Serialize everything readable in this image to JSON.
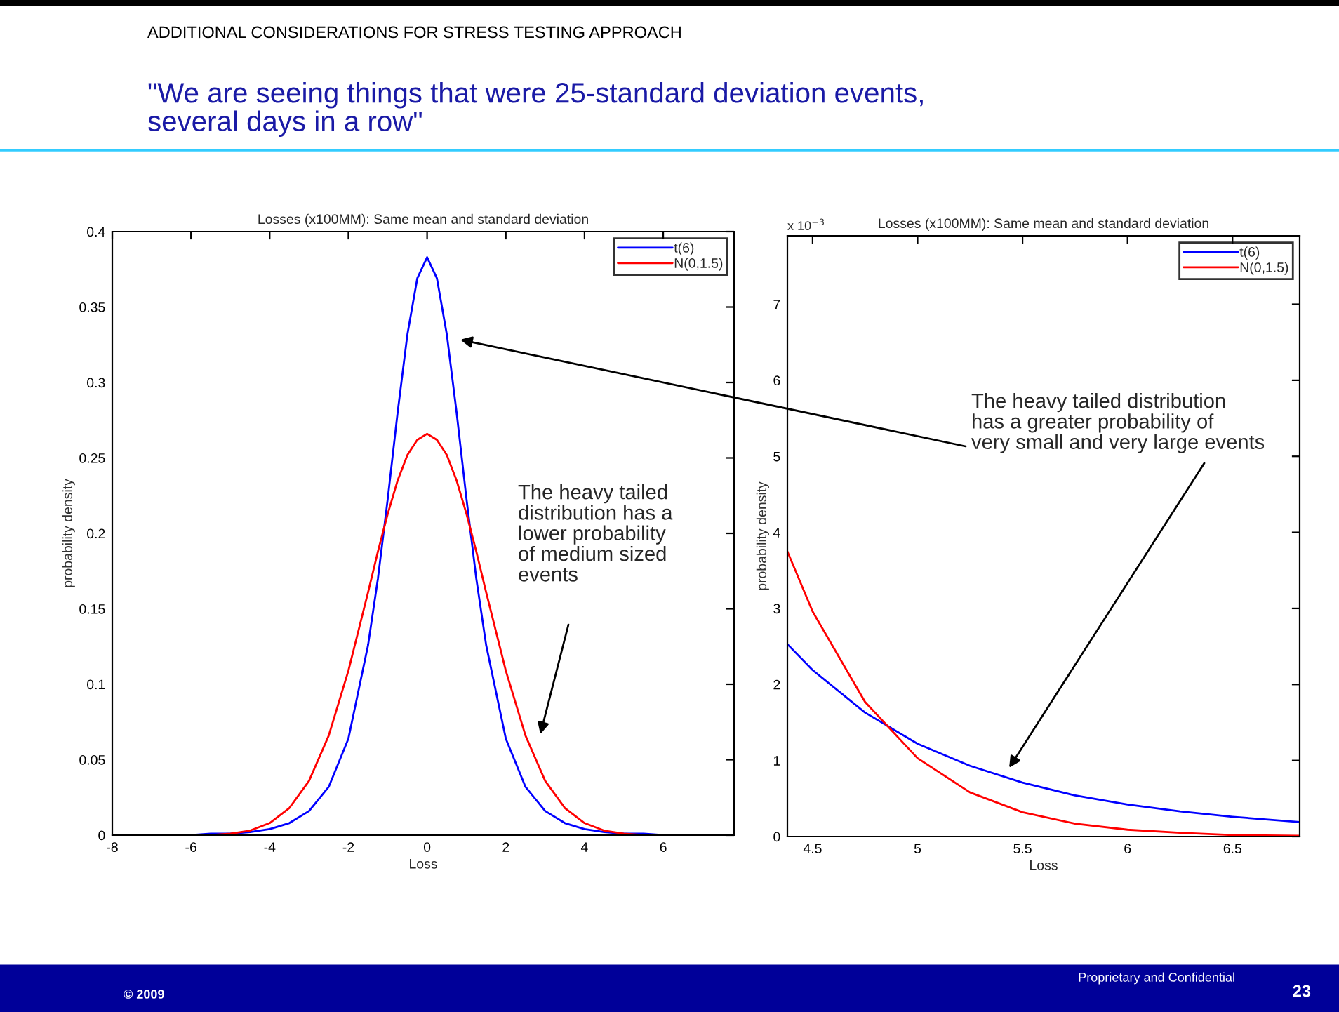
{
  "chart_data": [
    {
      "type": "line",
      "title": "Losses (x100MM): Same mean and standard deviation",
      "xlabel": "Loss",
      "ylabel": "probability density",
      "xlim": [
        -8,
        7.8
      ],
      "xticks": [
        -8,
        -6,
        -4,
        -2,
        0,
        2,
        4,
        6
      ],
      "ylim": [
        0,
        0.4
      ],
      "yticks": [
        0,
        0.05,
        0.1,
        0.15,
        0.2,
        0.25,
        0.3,
        0.35,
        0.4
      ],
      "grid": false,
      "legend": "top right",
      "marker": "none",
      "line_style": "solid",
      "series": [
        {
          "name": "t(6)",
          "color": "#0000ff",
          "x": [
            -6.2,
            -6,
            -5.5,
            -5,
            -4.5,
            -4,
            -3.5,
            -3,
            -2.5,
            -2,
            -1.5,
            -1.25,
            -1,
            -0.75,
            -0.5,
            -0.25,
            0,
            0.25,
            0.5,
            0.75,
            1,
            1.25,
            1.5,
            2,
            2.5,
            3,
            3.5,
            4,
            4.5,
            5,
            5.5,
            6,
            6.2
          ],
          "values": [
            0,
            0,
            0.001,
            0.001,
            0.002,
            0.004,
            0.008,
            0.016,
            0.032,
            0.064,
            0.126,
            0.17,
            0.223,
            0.28,
            0.332,
            0.369,
            0.383,
            0.369,
            0.332,
            0.28,
            0.223,
            0.17,
            0.126,
            0.064,
            0.032,
            0.016,
            0.008,
            0.004,
            0.002,
            0.001,
            0.001,
            0,
            0
          ]
        },
        {
          "name": "N(0,1.5)",
          "color": "#ff0000",
          "x": [
            -7,
            -6,
            -5.5,
            -5,
            -4.5,
            -4,
            -3.5,
            -3,
            -2.5,
            -2,
            -1.5,
            -1.25,
            -1,
            -0.75,
            -0.5,
            -0.25,
            0,
            0.25,
            0.5,
            0.75,
            1,
            1.25,
            1.5,
            2,
            2.5,
            3,
            3.5,
            4,
            4.5,
            5,
            5.5,
            6,
            7
          ],
          "values": [
            0,
            0,
            0,
            0.001,
            0.003,
            0.008,
            0.018,
            0.036,
            0.066,
            0.109,
            0.161,
            0.188,
            0.213,
            0.235,
            0.252,
            0.262,
            0.266,
            0.262,
            0.252,
            0.235,
            0.213,
            0.188,
            0.161,
            0.109,
            0.066,
            0.036,
            0.018,
            0.008,
            0.003,
            0.001,
            0,
            0,
            0
          ]
        }
      ],
      "annotations": [
        "ADDITIONAL CONSIDERATIONS FOR STRESS TESTING APPROACH",
        "\"We are seeing things that were 25-standard deviation events,\nseveral days in a row\"",
        "© 2009",
        "Proprietary and Confidential",
        "23",
        "The heavy tailed\ndistribution has a\nlower probability\nof medium sized\nevents"
      ]
    },
    {
      "type": "line",
      "title": "Losses (x100MM): Same mean and standard deviation",
      "xlabel": "Loss",
      "ylabel": "probability density",
      "xlim": [
        4.38,
        6.82
      ],
      "xticks": [
        4.5,
        5,
        5.5,
        6,
        6.5
      ],
      "ylim": [
        0,
        7.9
      ],
      "yticks": [
        0,
        1,
        2,
        3,
        4,
        5,
        6,
        7
      ],
      "grid": false,
      "legend": "top right",
      "marker": "none",
      "line_style": "solid",
      "series": [
        {
          "name": "t(6)",
          "color": "#0000ff",
          "x": [
            4.38,
            4.5,
            4.75,
            5,
            5.25,
            5.5,
            5.75,
            6,
            6.25,
            6.5,
            6.82
          ],
          "values": [
            2.53,
            2.19,
            1.63,
            1.22,
            0.93,
            0.71,
            0.54,
            0.42,
            0.33,
            0.26,
            0.19
          ]
        },
        {
          "name": "N(0,1.5)",
          "color": "#ff0000",
          "x": [
            4.38,
            4.5,
            4.75,
            5,
            5.25,
            5.5,
            5.75,
            6,
            6.25,
            6.5,
            6.82
          ],
          "values": [
            3.75,
            2.96,
            1.77,
            1.03,
            0.58,
            0.32,
            0.17,
            0.09,
            0.05,
            0.02,
            0.01
          ]
        }
      ],
      "annotations": [
        "x 10$^{−3}$",
        "The heavy tailed distribution\nhas a greater probability of\nvery small and very large events"
      ]
    }
  ]
}
